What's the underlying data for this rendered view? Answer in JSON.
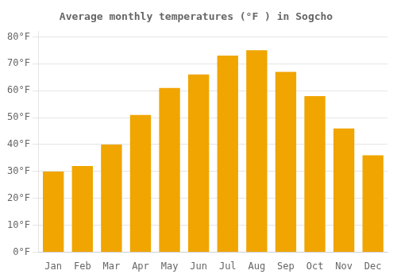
{
  "chart_data": {
    "type": "bar",
    "title": "Average monthly temperatures (°F ) in Sogcho",
    "categories": [
      "Jan",
      "Feb",
      "Mar",
      "Apr",
      "May",
      "Jun",
      "Jul",
      "Aug",
      "Sep",
      "Oct",
      "Nov",
      "Dec"
    ],
    "values": [
      30,
      32,
      40,
      51,
      61,
      66,
      73,
      75,
      67,
      58,
      46,
      36
    ],
    "color": "#F0A500",
    "ylim": [
      0,
      82
    ],
    "yticks": [
      {
        "value": 0,
        "label": "0°F"
      },
      {
        "value": 10,
        "label": "10°F"
      },
      {
        "value": 20,
        "label": "20°F"
      },
      {
        "value": 30,
        "label": "30°F"
      },
      {
        "value": 40,
        "label": "40°F"
      },
      {
        "value": 50,
        "label": "50°F"
      },
      {
        "value": 60,
        "label": "60°F"
      },
      {
        "value": 70,
        "label": "70°F"
      },
      {
        "value": 80,
        "label": "80°F"
      }
    ],
    "grid": true
  }
}
